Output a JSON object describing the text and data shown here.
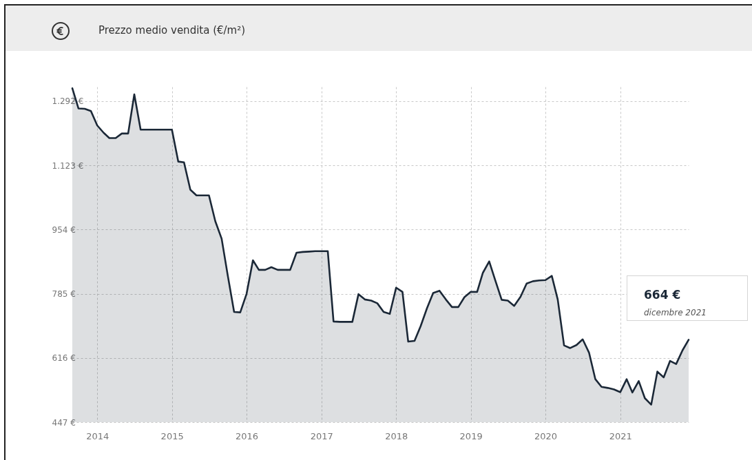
{
  "chart_data": {
    "type": "area",
    "title": "Prezzo medio vendita (€/m²)",
    "x": [
      "2013-09",
      "2013-10",
      "2013-11",
      "2013-12",
      "2014-01",
      "2014-02",
      "2014-03",
      "2014-04",
      "2014-05",
      "2014-06",
      "2014-07",
      "2014-08",
      "2014-09",
      "2014-10",
      "2014-11",
      "2014-12",
      "2015-01",
      "2015-02",
      "2015-03",
      "2015-04",
      "2015-05",
      "2015-06",
      "2015-07",
      "2015-08",
      "2015-09",
      "2015-10",
      "2015-11",
      "2015-12",
      "2016-01",
      "2016-02",
      "2016-03",
      "2016-04",
      "2016-05",
      "2016-06",
      "2016-07",
      "2016-08",
      "2016-09",
      "2016-10",
      "2016-11",
      "2016-12",
      "2017-01",
      "2017-02",
      "2017-03",
      "2017-04",
      "2017-05",
      "2017-06",
      "2017-07",
      "2017-08",
      "2017-09",
      "2017-10",
      "2017-11",
      "2017-12",
      "2018-01",
      "2018-02",
      "2018-03",
      "2018-04",
      "2018-05",
      "2018-06",
      "2018-07",
      "2018-08",
      "2018-09",
      "2018-10",
      "2018-11",
      "2018-12",
      "2019-01",
      "2019-02",
      "2019-03",
      "2019-04",
      "2019-05",
      "2019-06",
      "2019-07",
      "2019-08",
      "2019-09",
      "2019-10",
      "2019-11",
      "2019-12",
      "2020-01",
      "2020-02",
      "2020-03",
      "2020-04",
      "2020-05",
      "2020-06",
      "2020-07",
      "2020-08",
      "2020-09",
      "2020-10",
      "2020-11",
      "2020-12",
      "2021-01",
      "2021-02",
      "2021-03",
      "2021-04",
      "2021-05",
      "2021-06",
      "2021-07",
      "2021-08",
      "2021-09",
      "2021-10",
      "2021-11",
      "2021-12"
    ],
    "series": [
      {
        "color": "#1b2837",
        "values": [
          1326,
          1273,
          1272,
          1266,
          1228,
          1209,
          1195,
          1195,
          1207,
          1207,
          1310,
          1217,
          1217,
          1217,
          1217,
          1217,
          1217,
          1133,
          1131,
          1059,
          1044,
          1044,
          1044,
          976,
          930,
          833,
          737,
          736,
          785,
          873,
          848,
          848,
          855,
          848,
          848,
          848,
          893,
          895,
          896,
          897,
          897,
          897,
          712,
          711,
          711,
          711,
          784,
          770,
          767,
          760,
          737,
          732,
          801,
          790,
          659,
          661,
          700,
          747,
          787,
          793,
          770,
          750,
          750,
          776,
          790,
          790,
          840,
          870,
          820,
          769,
          767,
          753,
          777,
          812,
          818,
          820,
          821,
          832,
          770,
          649,
          642,
          650,
          665,
          630,
          560,
          540,
          537,
          533,
          526,
          560,
          525,
          555,
          510,
          493,
          580,
          565,
          608,
          600,
          636,
          664
        ]
      }
    ],
    "xlim": [
      "2013-09",
      "2021-12"
    ],
    "xticks": [
      "2014",
      "2015",
      "2016",
      "2017",
      "2018",
      "2019",
      "2020",
      "2021"
    ],
    "ylim": [
      447,
      1330
    ],
    "yticks": [
      {
        "value": 447,
        "label": "447 €"
      },
      {
        "value": 616,
        "label": "616 €"
      },
      {
        "value": 785,
        "label": "785 €"
      },
      {
        "value": 954,
        "label": "954 €"
      },
      {
        "value": 1123,
        "label": "1.123 €"
      },
      {
        "value": 1292,
        "label": "1.292 €"
      }
    ],
    "grid": true,
    "annotations": [
      "664 €",
      "dicembre 2021"
    ]
  }
}
